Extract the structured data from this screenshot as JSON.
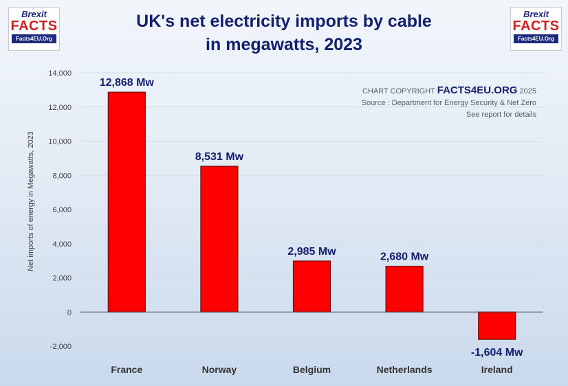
{
  "title": {
    "line1": "UK's net electricity imports by cable",
    "line2": "in megawatts, 2023"
  },
  "logos": {
    "top": "Brexit",
    "middle": "FACTS",
    "bottom": "Facts4EU.Org"
  },
  "copyright": {
    "prefix": "CHART COPYRIGHT",
    "brand": "FACTS4EU.ORG",
    "year": "2025",
    "source": "Source : Department for Energy Security & Net Zero",
    "note": "See report for details"
  },
  "colors": {
    "bar_fill": "#ff0000",
    "bar_stroke": "#6e1010",
    "title": "#12206e",
    "data_label": "#12206e",
    "axis_text": "#404040",
    "gridline": "#d4dde8"
  },
  "chart_data": {
    "type": "bar",
    "title": "UK's net electricity imports by cable in megawatts, 2023",
    "xlabel": "",
    "ylabel": "Net imports of energy in Megawatts, 2023",
    "categories": [
      "France",
      "Norway",
      "Belgium",
      "Netherlands",
      "Ireland"
    ],
    "values": [
      12868,
      8531,
      2985,
      2680,
      -1604
    ],
    "data_labels": [
      "12,868 Mw",
      "8,531 Mw",
      "2,985 Mw",
      "2,680 Mw",
      "-1,604 Mw"
    ],
    "ylim": [
      -2000,
      14000
    ],
    "yticks": [
      -2000,
      0,
      2000,
      4000,
      6000,
      8000,
      10000,
      12000,
      14000
    ],
    "ytick_labels": [
      "-2,000",
      "0",
      "2,000",
      "4,000",
      "6,000",
      "8,000",
      "10,000",
      "12,000",
      "14,000"
    ],
    "grid": true,
    "legend": "none"
  }
}
